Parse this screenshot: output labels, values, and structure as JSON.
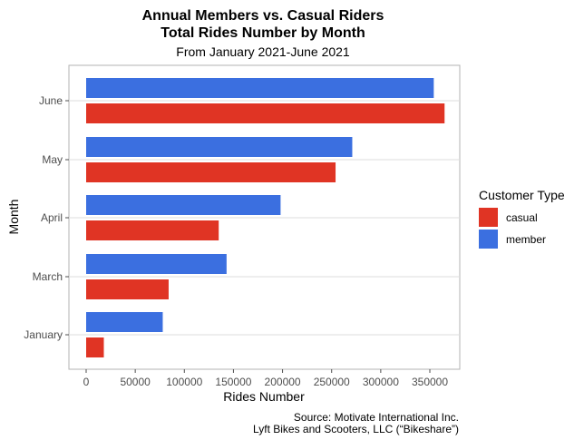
{
  "chart_data": {
    "type": "bar",
    "orientation": "horizontal",
    "title": "Annual Members vs. Casual Riders",
    "title_line2": "Total Rides Number by Month",
    "subtitle": "From January 2021-June 2021",
    "xlabel": "Rides Number",
    "ylabel": "Month",
    "categories": [
      "January",
      "March",
      "April",
      "May",
      "June"
    ],
    "series": [
      {
        "name": "member",
        "color": "#3b6fe0",
        "values": [
          78000,
          143000,
          198000,
          271000,
          354000
        ]
      },
      {
        "name": "casual",
        "color": "#e03424",
        "values": [
          18000,
          84000,
          135000,
          254000,
          365000
        ]
      }
    ],
    "xlim": [
      0,
      385000
    ],
    "xticks": [
      0,
      50000,
      100000,
      150000,
      200000,
      250000,
      300000,
      350000
    ],
    "xtick_labels": [
      "0",
      "50000",
      "100000",
      "150000",
      "200000",
      "250000",
      "300000",
      "350000"
    ],
    "grid": true,
    "legend": {
      "title": "Customer Type",
      "placement": "right",
      "entries": [
        {
          "label": "casual",
          "color": "#e03424"
        },
        {
          "label": "member",
          "color": "#3b6fe0"
        }
      ]
    },
    "caption_line1": "Source: Motivate International Inc.",
    "caption_line2": "Lyft Bikes and Scooters, LLC (“Bikeshare”)"
  }
}
